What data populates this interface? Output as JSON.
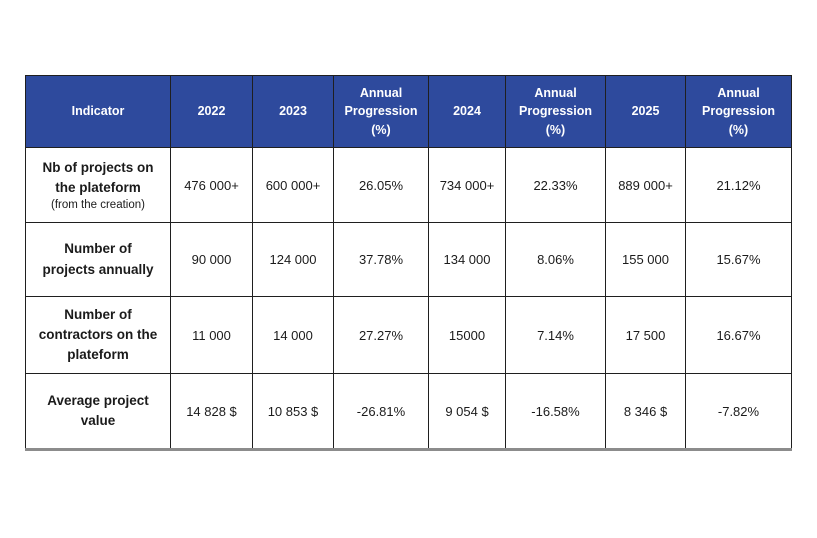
{
  "page": {
    "background": "#ffffff"
  },
  "table": {
    "colors": {
      "header_bg": "#2e4a9d",
      "header_text": "#ffffff",
      "body_text": "#1b1b1b",
      "border_color": "#1f1f1f",
      "bottom_border": "#8c8c8c"
    },
    "columns": [
      {
        "label": "Indicator"
      },
      {
        "label": "2022"
      },
      {
        "label": "2023"
      },
      {
        "label": "Annual Progression (%)"
      },
      {
        "label": "2024"
      },
      {
        "label": "Annual Progression (%)"
      },
      {
        "label": "2025"
      },
      {
        "label": "Annual Progression (%)"
      }
    ],
    "rows": [
      {
        "indicator": "Nb of projects on the plateform",
        "indicator_note": "(from the creation)",
        "values": [
          "476 000+",
          "600 000+",
          "26.05%",
          "734 000+",
          "22.33%",
          "889 000+",
          "21.12%"
        ]
      },
      {
        "indicator": "Number of projects annually",
        "indicator_note": "",
        "values": [
          "90 000",
          "124 000",
          "37.78%",
          "134 000",
          "8.06%",
          "155 000",
          "15.67%"
        ]
      },
      {
        "indicator": "Number of contractors on the plateform",
        "indicator_note": "",
        "values": [
          "11 000",
          "14 000",
          "27.27%",
          "15000",
          "7.14%",
          "17 500",
          "16.67%"
        ]
      },
      {
        "indicator": "Average project value",
        "indicator_note": "",
        "values": [
          "14 828 $",
          "10 853 $",
          "-26.81%",
          "9 054 $",
          "-16.58%",
          "8 346 $",
          "-7.82%"
        ]
      }
    ]
  }
}
